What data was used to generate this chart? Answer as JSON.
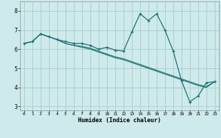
{
  "xlabel": "Humidex (Indice chaleur)",
  "bg_color": "#ceeaea",
  "grid_color": "#a8cfcf",
  "line_color": "#1a6e6e",
  "xlim": [
    -0.5,
    23.5
  ],
  "ylim": [
    2.8,
    8.5
  ],
  "yticks": [
    3,
    4,
    5,
    6,
    7,
    8
  ],
  "xticks": [
    0,
    1,
    2,
    3,
    4,
    5,
    6,
    7,
    8,
    9,
    10,
    11,
    12,
    13,
    14,
    15,
    16,
    17,
    18,
    19,
    20,
    21,
    22,
    23
  ],
  "series_main": [
    6.3,
    6.4,
    6.8,
    6.65,
    6.5,
    6.4,
    6.3,
    6.3,
    6.2,
    6.0,
    6.1,
    5.95,
    5.9,
    6.9,
    7.85,
    7.5,
    7.85,
    7.0,
    5.9,
    4.35,
    3.25,
    3.55,
    4.25,
    4.3
  ],
  "series_line2": [
    6.3,
    6.4,
    6.8,
    6.65,
    6.5,
    6.3,
    6.2,
    6.15,
    6.05,
    5.9,
    5.75,
    5.6,
    5.5,
    5.35,
    5.2,
    5.05,
    4.9,
    4.75,
    4.6,
    4.45,
    4.3,
    4.15,
    4.05,
    4.3
  ],
  "series_line3": [
    6.3,
    6.4,
    6.8,
    6.65,
    6.5,
    6.3,
    6.2,
    6.1,
    6.0,
    5.85,
    5.7,
    5.55,
    5.45,
    5.3,
    5.15,
    5.0,
    4.85,
    4.7,
    4.55,
    4.4,
    4.25,
    4.1,
    4.0,
    4.3
  ]
}
